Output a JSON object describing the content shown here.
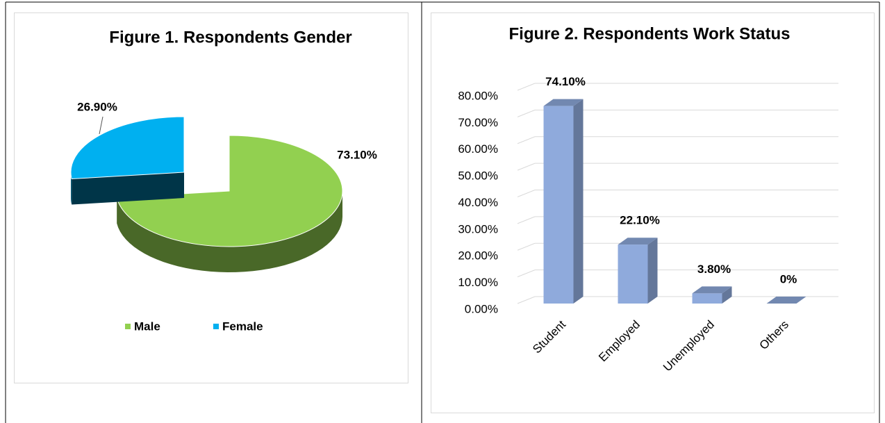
{
  "chart_data": [
    {
      "type": "pie",
      "title": "Figure 1. Respondents Gender",
      "categories": [
        "Male",
        "Female"
      ],
      "values": [
        73.1,
        26.9
      ],
      "value_labels": [
        "73.10%",
        "26.90%"
      ],
      "colors": [
        "#92d050",
        "#00b0f0"
      ],
      "legend": "bottom"
    },
    {
      "type": "bar",
      "title": "Figure 2. Respondents Work Status",
      "categories": [
        "Student",
        "Employed",
        "Unemployed",
        "Others"
      ],
      "values": [
        74.1,
        22.1,
        3.8,
        0
      ],
      "value_labels": [
        "74.10%",
        "22.10%",
        "3.80%",
        "0%"
      ],
      "color": "#8faadc",
      "ylim": [
        0,
        80
      ],
      "yticks": [
        {
          "value": 0,
          "label": "0.00%"
        },
        {
          "value": 10,
          "label": "10.00%"
        },
        {
          "value": 20,
          "label": "20.00%"
        },
        {
          "value": 30,
          "label": "30.00%"
        },
        {
          "value": 40,
          "label": "40.00%"
        },
        {
          "value": 50,
          "label": "50.00%"
        },
        {
          "value": 60,
          "label": "60.00%"
        },
        {
          "value": 70,
          "label": "70.00%"
        },
        {
          "value": 80,
          "label": "80.00%"
        }
      ],
      "grid": true
    }
  ]
}
